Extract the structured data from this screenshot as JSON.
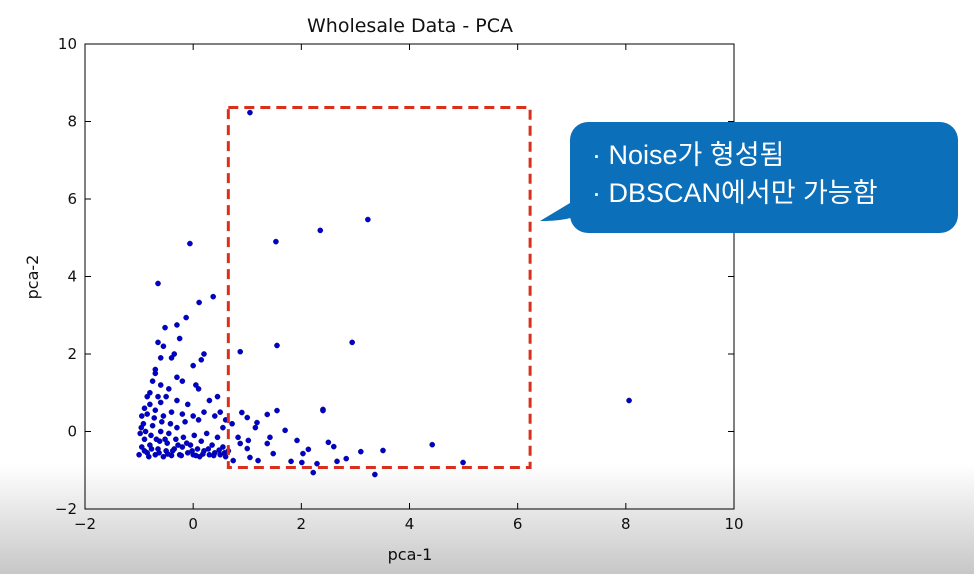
{
  "chart_data": {
    "type": "scatter",
    "title": "Wholesale Data - PCA",
    "xlabel": "pca-1",
    "ylabel": "pca-2",
    "xlim": [
      -2,
      10
    ],
    "ylim": [
      -2,
      10
    ],
    "xticks": [
      -2,
      0,
      2,
      4,
      6,
      8,
      10
    ],
    "yticks": [
      -2,
      0,
      2,
      4,
      6,
      8,
      10
    ],
    "grid": false,
    "point_color": "#0000cc",
    "highlight_region": {
      "x": [
        0.65,
        6.23
      ],
      "y": [
        -0.93,
        8.36
      ],
      "color": "#d9301c",
      "style": "dashed"
    },
    "points": [
      [
        1.05,
        8.23
      ],
      [
        -0.06,
        4.85
      ],
      [
        1.53,
        4.9
      ],
      [
        2.35,
        5.19
      ],
      [
        3.23,
        5.47
      ],
      [
        -0.65,
        3.82
      ],
      [
        0.37,
        3.48
      ],
      [
        0.87,
        2.06
      ],
      [
        1.55,
        2.22
      ],
      [
        2.94,
        2.3
      ],
      [
        8.06,
        0.8
      ],
      [
        2.4,
        0.57
      ],
      [
        4.42,
        -0.34
      ],
      [
        4.99,
        -0.8
      ],
      [
        3.36,
        -1.11
      ],
      [
        3.51,
        -0.49
      ],
      [
        0.11,
        3.33
      ],
      [
        -0.13,
        2.94
      ],
      [
        -0.52,
        2.68
      ],
      [
        -0.3,
        2.75
      ],
      [
        0.9,
        0.49
      ],
      [
        1.37,
        0.44
      ],
      [
        1.55,
        0.54
      ],
      [
        2.4,
        0.54
      ],
      [
        1.7,
        0.03
      ],
      [
        1.92,
        -0.23
      ],
      [
        2.5,
        -0.28
      ],
      [
        2.6,
        -0.39
      ],
      [
        3.1,
        -0.52
      ],
      [
        2.83,
        -0.7
      ],
      [
        2.66,
        -0.77
      ],
      [
        2.13,
        -0.46
      ],
      [
        2.03,
        -0.57
      ],
      [
        1.81,
        -0.77
      ],
      [
        2.01,
        -0.8
      ],
      [
        2.29,
        -0.83
      ],
      [
        2.22,
        -1.06
      ],
      [
        1.48,
        -0.57
      ],
      [
        1.42,
        -0.15
      ],
      [
        1.18,
        0.23
      ],
      [
        1.0,
        0.36
      ],
      [
        0.72,
        0.2
      ],
      [
        0.83,
        -0.15
      ],
      [
        0.87,
        -0.31
      ],
      [
        1.02,
        -0.23
      ],
      [
        1.0,
        -0.44
      ],
      [
        1.2,
        -0.75
      ],
      [
        1.37,
        -0.31
      ],
      [
        0.74,
        -0.75
      ],
      [
        1.05,
        -0.67
      ],
      [
        1.15,
        0.1
      ],
      [
        -0.8,
        1.0
      ],
      [
        -0.7,
        1.5
      ],
      [
        -0.75,
        1.3
      ],
      [
        -0.6,
        1.2
      ],
      [
        -0.5,
        0.9
      ],
      [
        -0.3,
        1.4
      ],
      [
        -0.2,
        1.3
      ],
      [
        0.1,
        1.1
      ],
      [
        0.05,
        1.2
      ],
      [
        -0.4,
        1.9
      ],
      [
        -0.35,
        2.0
      ],
      [
        -0.6,
        1.9
      ],
      [
        -0.7,
        1.6
      ],
      [
        -0.45,
        1.1
      ],
      [
        -0.3,
        0.8
      ],
      [
        -0.1,
        0.7
      ],
      [
        0.3,
        0.8
      ],
      [
        0.2,
        0.5
      ],
      [
        0.4,
        0.4
      ],
      [
        0.5,
        0.5
      ],
      [
        0.1,
        0.3
      ],
      [
        -0.55,
        2.2
      ],
      [
        -0.25,
        2.4
      ],
      [
        -0.65,
        2.3
      ],
      [
        -0.9,
        0.6
      ],
      [
        -0.85,
        0.9
      ],
      [
        -0.95,
        0.4
      ],
      [
        0.55,
        0.1
      ],
      [
        0.6,
        0.3
      ],
      [
        0.45,
        0.9
      ],
      [
        0.0,
        1.7
      ],
      [
        0.15,
        1.85
      ],
      [
        0.2,
        2.0
      ],
      [
        -1.0,
        -0.6
      ],
      [
        -0.95,
        -0.4
      ],
      [
        -0.9,
        -0.2
      ],
      [
        -0.88,
        0.0
      ],
      [
        -0.92,
        0.2
      ],
      [
        -0.85,
        -0.55
      ],
      [
        -0.8,
        -0.35
      ],
      [
        -0.78,
        -0.1
      ],
      [
        -0.75,
        0.15
      ],
      [
        -0.72,
        0.35
      ],
      [
        -0.7,
        -0.6
      ],
      [
        -0.65,
        -0.45
      ],
      [
        -0.62,
        -0.25
      ],
      [
        -0.6,
        0.0
      ],
      [
        -0.58,
        0.25
      ],
      [
        -0.55,
        -0.65
      ],
      [
        -0.5,
        -0.5
      ],
      [
        -0.48,
        -0.3
      ],
      [
        -0.45,
        -0.05
      ],
      [
        -0.42,
        0.2
      ],
      [
        -0.4,
        -0.62
      ],
      [
        -0.35,
        -0.45
      ],
      [
        -0.32,
        -0.2
      ],
      [
        -0.3,
        0.1
      ],
      [
        -0.25,
        -0.6
      ],
      [
        -0.2,
        -0.4
      ],
      [
        -0.18,
        -0.15
      ],
      [
        -0.15,
        0.25
      ],
      [
        -0.1,
        -0.55
      ],
      [
        -0.05,
        -0.35
      ],
      [
        0.0,
        -0.6
      ],
      [
        0.02,
        -0.1
      ],
      [
        0.08,
        -0.45
      ],
      [
        0.12,
        -0.65
      ],
      [
        0.15,
        -0.25
      ],
      [
        0.2,
        -0.5
      ],
      [
        0.25,
        -0.05
      ],
      [
        0.3,
        -0.6
      ],
      [
        0.35,
        -0.35
      ],
      [
        0.4,
        -0.55
      ],
      [
        0.45,
        -0.15
      ],
      [
        0.5,
        -0.6
      ],
      [
        0.55,
        -0.4
      ],
      [
        0.6,
        -0.65
      ],
      [
        0.65,
        -0.5
      ],
      [
        -0.98,
        -0.05
      ],
      [
        -0.96,
        0.1
      ],
      [
        -0.9,
        -0.5
      ],
      [
        -0.82,
        -0.65
      ],
      [
        -0.77,
        -0.45
      ],
      [
        -0.68,
        -0.2
      ],
      [
        -0.63,
        -0.55
      ],
      [
        -0.52,
        -0.2
      ],
      [
        -0.47,
        -0.58
      ],
      [
        -0.38,
        -0.5
      ],
      [
        -0.28,
        -0.35
      ],
      [
        -0.22,
        -0.62
      ],
      [
        -0.12,
        -0.3
      ],
      [
        -0.02,
        -0.5
      ],
      [
        0.05,
        -0.62
      ],
      [
        0.18,
        -0.58
      ],
      [
        0.28,
        -0.45
      ],
      [
        0.38,
        -0.62
      ],
      [
        0.48,
        -0.48
      ],
      [
        0.58,
        -0.55
      ],
      [
        -0.85,
        0.45
      ],
      [
        -0.8,
        0.7
      ],
      [
        -0.7,
        0.55
      ],
      [
        -0.6,
        0.75
      ],
      [
        -0.4,
        0.5
      ],
      [
        -0.2,
        0.45
      ],
      [
        0.0,
        0.4
      ],
      [
        -0.65,
        0.9
      ],
      [
        -0.55,
        0.4
      ]
    ]
  },
  "callout": {
    "lines": [
      "· Noise가 형성됨",
      "· DBSCAN에서만 가능함"
    ],
    "color": "#0b6fba"
  }
}
